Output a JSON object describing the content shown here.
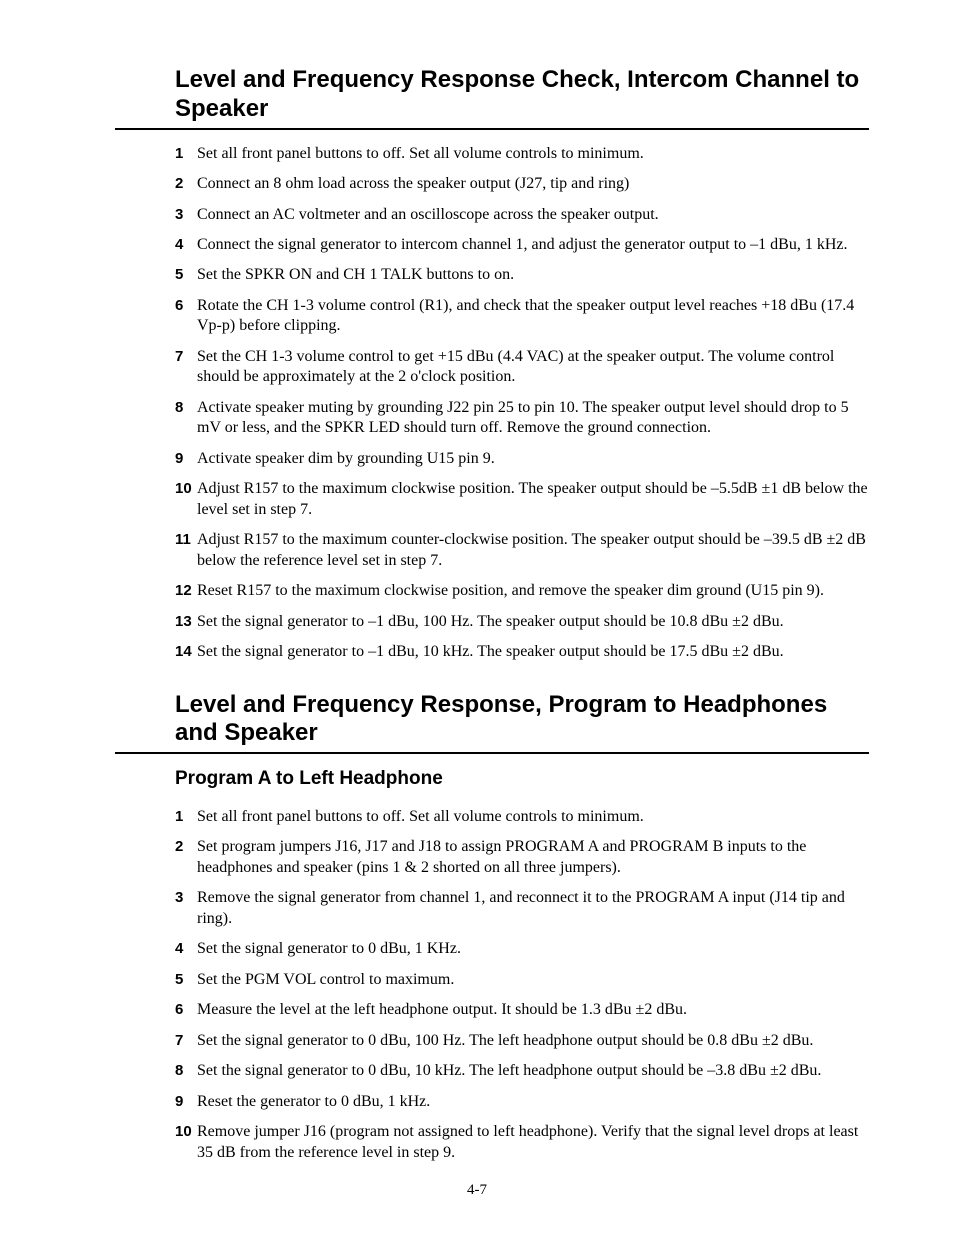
{
  "section1": {
    "title": "Level and Frequency Response Check, Intercom Channel to Speaker",
    "items": [
      "Set all front panel buttons to off. Set all volume controls to minimum.",
      "Connect an 8 ohm load across the speaker output (J27, tip and ring)",
      "Connect an AC voltmeter and an oscilloscope across the speaker output.",
      "Connect the signal generator to intercom channel 1, and adjust the generator output to –1 dBu, 1 kHz.",
      "Set the SPKR ON and CH 1 TALK buttons to on.",
      "Rotate the CH 1-3 volume control (R1), and check that the speaker output level reaches +18 dBu (17.4 Vp-p) before clipping.",
      "Set the CH 1-3 volume control to get +15 dBu (4.4 VAC) at the speaker output. The volume control should be approximately at the 2 o'clock position.",
      "Activate speaker muting by grounding J22 pin 25 to pin 10. The speaker output level should drop to 5 mV or less, and the SPKR LED should turn off. Remove the ground connection.",
      "Activate speaker dim by grounding U15 pin 9.",
      "Adjust R157 to the maximum clockwise position. The speaker output should be –5.5dB ±1 dB below the level set in step 7.",
      "Adjust R157 to the maximum counter-clockwise position. The speaker output should be –39.5 dB ±2 dB below the reference level set in step 7.",
      "Reset R157 to the maximum clockwise position, and remove the speaker dim ground (U15 pin 9).",
      "Set the signal generator to –1 dBu, 100 Hz. The speaker output should be 10.8 dBu ±2 dBu.",
      "Set the signal generator to –1 dBu, 10 kHz. The speaker output should be 17.5 dBu ±2 dBu."
    ]
  },
  "section2": {
    "title": "Level and Frequency Response, Program to Headphones and Speaker",
    "subtitle": "Program A to Left Headphone",
    "items": [
      "Set all front panel buttons to off. Set all volume controls to minimum.",
      "Set program jumpers J16, J17 and J18 to assign PROGRAM A and PROGRAM B inputs to the headphones and speaker (pins 1 & 2 shorted on all three jumpers).",
      "Remove the signal generator from channel 1, and reconnect it to the PROGRAM A input (J14 tip and ring).",
      "Set the signal generator to 0 dBu, 1 KHz.",
      "Set the PGM VOL control to maximum.",
      "Measure the level at the left headphone output. It should be 1.3 dBu ±2 dBu.",
      "Set the signal generator to 0 dBu, 100 Hz. The left headphone output should be 0.8 dBu ±2 dBu.",
      "Set the signal generator to 0 dBu, 10 kHz.  The left headphone output should be –3.8 dBu ±2 dBu.",
      "Reset the generator to 0 dBu, 1 kHz.",
      "Remove jumper J16 (program not assigned to left headphone). Verify that the signal level drops at least 35 dB from the reference level in step 9."
    ]
  },
  "pageNumber": "4-7"
}
